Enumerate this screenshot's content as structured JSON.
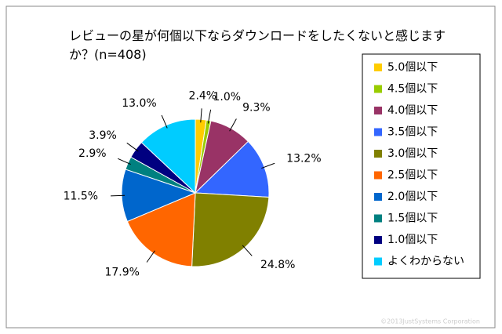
{
  "chart_data": {
    "type": "pie",
    "title": "レビューの星が何個以下ならダウンロードをしたくないと感じますか？(n=408)",
    "categories": [
      "5.0個以下",
      "4.5個以下",
      "4.0個以下",
      "3.5個以下",
      "3.0個以下",
      "2.5個以下",
      "2.0個以下",
      "1.5個以下",
      "1.0個以下",
      "よくわからない"
    ],
    "values": [
      2.4,
      1.0,
      9.3,
      13.2,
      24.8,
      17.9,
      11.5,
      2.9,
      3.9,
      13.0
    ],
    "value_labels": [
      "2.4%",
      "1.0%",
      "9.3%",
      "13.2%",
      "24.8%",
      "17.9%",
      "11.5%",
      "2.9%",
      "3.9%",
      "13.0%"
    ],
    "colors": [
      "#ffcc00",
      "#99cc00",
      "#993366",
      "#3366ff",
      "#808000",
      "#ff6600",
      "#0066cc",
      "#008080",
      "#000080",
      "#00ccff"
    ],
    "legend": "right",
    "copyright": "©2013JustSystems Corporation"
  }
}
